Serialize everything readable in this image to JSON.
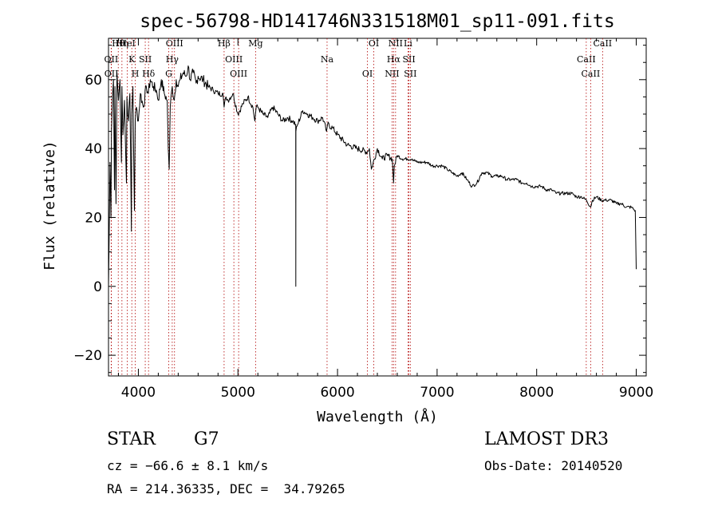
{
  "chart_data": {
    "type": "line",
    "title": "spec-56798-HD141746N331518M01_sp11-091.fits",
    "xlabel": "Wavelength (Å)",
    "ylabel": "Flux (relative)",
    "xlim": [
      3700,
      9100
    ],
    "ylim": [
      -26,
      72
    ],
    "xticks": [
      4000,
      5000,
      6000,
      7000,
      8000,
      9000
    ],
    "xtick_labels": [
      "4000",
      "5000",
      "6000",
      "7000",
      "8000",
      "9000"
    ],
    "yticks": [
      -20,
      0,
      20,
      40,
      60
    ],
    "ytick_labels": [
      "−20",
      "0",
      "20",
      "40",
      "60"
    ],
    "grid": false,
    "series": [
      {
        "name": "spectrum",
        "color": "#000000",
        "x": [
          3700,
          3705,
          3715,
          3725,
          3730,
          3740,
          3750,
          3760,
          3765,
          3775,
          3785,
          3800,
          3815,
          3830,
          3835,
          3845,
          3860,
          3880,
          3885,
          3900,
          3915,
          3930,
          3933,
          3945,
          3960,
          3968,
          3980,
          4000,
          4020,
          4050,
          4080,
          4100,
          4120,
          4150,
          4180,
          4200,
          4230,
          4260,
          4290,
          4300,
          4310,
          4320,
          4340,
          4360,
          4380,
          4400,
          4420,
          4450,
          4480,
          4500,
          4520,
          4550,
          4580,
          4600,
          4650,
          4700,
          4750,
          4800,
          4850,
          4861,
          4880,
          4900,
          4950,
          5000,
          5050,
          5100,
          5150,
          5170,
          5183,
          5200,
          5250,
          5300,
          5350,
          5400,
          5450,
          5500,
          5550,
          5580,
          5581,
          5582,
          5600,
          5650,
          5700,
          5750,
          5800,
          5850,
          5890,
          5900,
          5950,
          6000,
          6100,
          6200,
          6300,
          6320,
          6340,
          6400,
          6450,
          6500,
          6550,
          6563,
          6570,
          6600,
          6650,
          6700,
          6750,
          6800,
          6850,
          6900,
          6950,
          7000,
          7050,
          7100,
          7150,
          7200,
          7250,
          7300,
          7350,
          7400,
          7450,
          7500,
          7550,
          7600,
          7650,
          7700,
          7750,
          7800,
          7850,
          7900,
          7950,
          8000,
          8050,
          8100,
          8150,
          8200,
          8250,
          8300,
          8350,
          8400,
          8450,
          8500,
          8542,
          8560,
          8600,
          8650,
          8700,
          8750,
          8800,
          8850,
          8900,
          8950,
          8990,
          9000
        ],
        "y": [
          0,
          10,
          36,
          20,
          45,
          55,
          60,
          28,
          58,
          24,
          62,
          54,
          60,
          36,
          58,
          44,
          54,
          30,
          55,
          48,
          56,
          16,
          50,
          58,
          22,
          48,
          52,
          48,
          56,
          52,
          58,
          56,
          60,
          58,
          57,
          54,
          60,
          56,
          54,
          40,
          34,
          52,
          58,
          54,
          60,
          58,
          60,
          62,
          61,
          64,
          60,
          62,
          59,
          61,
          60,
          58,
          57,
          56,
          56,
          52,
          55,
          54,
          56,
          50,
          53,
          55,
          52,
          48,
          52,
          52,
          50,
          49,
          52,
          50,
          48,
          49,
          48,
          47,
          0,
          45,
          47,
          51,
          50,
          49,
          48,
          49,
          45,
          47,
          46,
          44,
          41,
          40,
          39,
          40,
          34,
          40,
          37,
          38,
          37,
          30,
          35,
          38,
          37,
          37,
          37,
          36,
          36,
          36,
          35,
          35,
          35,
          34,
          33,
          32,
          33,
          31,
          29,
          30,
          33,
          33,
          32,
          32,
          32,
          31,
          31,
          31,
          30,
          30,
          29,
          29,
          29,
          28,
          28,
          27,
          27,
          27,
          27,
          26,
          26,
          25,
          23,
          25,
          26,
          25,
          25,
          25,
          24,
          24,
          23,
          23,
          22,
          5
        ]
      }
    ],
    "line_markers": [
      {
        "label": "Hθ",
        "wavelength": 3798
      },
      {
        "label": "OII",
        "wavelength": 3727
      },
      {
        "label": "OII",
        "wavelength": 3729
      },
      {
        "label": "Hη",
        "wavelength": 3835
      },
      {
        "label": "K",
        "wavelength": 3934
      },
      {
        "label": "H",
        "wavelength": 3969
      },
      {
        "label": "HeI",
        "wavelength": 3889
      },
      {
        "label": "SII",
        "wavelength": 4069
      },
      {
        "label": "Hδ",
        "wavelength": 4102
      },
      {
        "label": "OIII",
        "wavelength": 4363
      },
      {
        "label": "Hγ",
        "wavelength": 4340
      },
      {
        "label": "G",
        "wavelength": 4305
      },
      {
        "label": "Hβ",
        "wavelength": 4861
      },
      {
        "label": "OIII",
        "wavelength": 4959
      },
      {
        "label": "OIII",
        "wavelength": 5007
      },
      {
        "label": "Mg",
        "wavelength": 5177
      },
      {
        "label": "Na",
        "wavelength": 5895
      },
      {
        "label": "OI",
        "wavelength": 6300
      },
      {
        "label": "OI",
        "wavelength": 6364
      },
      {
        "label": "Hα",
        "wavelength": 6563
      },
      {
        "label": "NII",
        "wavelength": 6548
      },
      {
        "label": "NII",
        "wavelength": 6583
      },
      {
        "label": "SII",
        "wavelength": 6717
      },
      {
        "label": "SII",
        "wavelength": 6731
      },
      {
        "label": "Li",
        "wavelength": 6708
      },
      {
        "label": "CaII",
        "wavelength": 8498
      },
      {
        "label": "CaII",
        "wavelength": 8542
      },
      {
        "label": "CaII",
        "wavelength": 8662
      }
    ]
  },
  "info": {
    "obj_class": "STAR",
    "subclass": "G7",
    "survey": "LAMOST DR3",
    "cz": "cz = −66.6 ± 8.1 km/s",
    "obs_date": "Obs-Date: 20140520",
    "coords": "RA = 214.36335, DEC =  34.79265"
  }
}
